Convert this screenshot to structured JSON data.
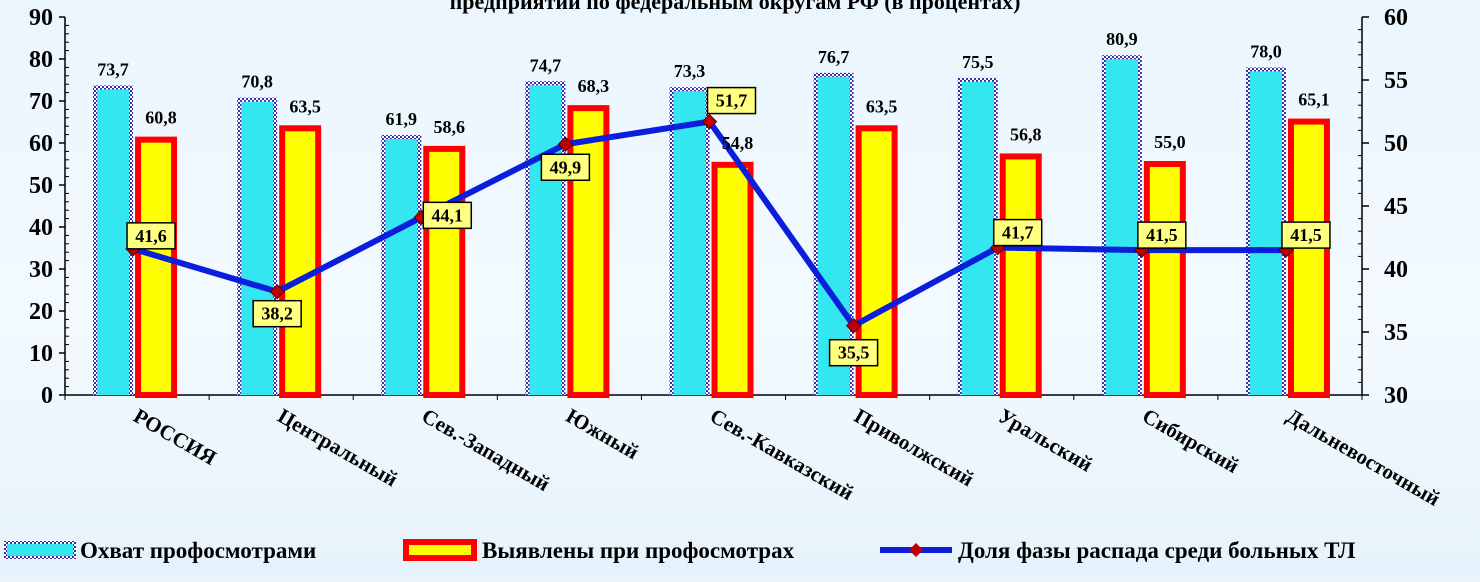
{
  "chart_data": {
    "type": "bar",
    "title": "предприятий по федеральным округам РФ (в процентах)",
    "categories": [
      "РОССИЯ",
      "Центральный",
      "Сев.-Западный",
      "Южный",
      "Сев.-Кавказский",
      "Приволжский",
      "Уральский",
      "Сибирский",
      "Дальневосточный"
    ],
    "series": [
      {
        "name": "Охват профосмотрами",
        "kind": "bar",
        "axis": "left",
        "color": "#33e6f0",
        "values": [
          73.7,
          70.8,
          61.9,
          74.7,
          73.3,
          76.7,
          75.5,
          80.9,
          78.0
        ],
        "labels": [
          "73,7",
          "70,8",
          "61,9",
          "74,7",
          "73,3",
          "76,7",
          "75,5",
          "80,9",
          "78,0"
        ]
      },
      {
        "name": "Выявлены при профосмотрах",
        "kind": "bar",
        "axis": "left",
        "color": "#ffff00",
        "border": "#ff0000",
        "values": [
          60.8,
          63.5,
          58.6,
          68.3,
          54.8,
          63.5,
          56.8,
          55.0,
          65.1
        ],
        "labels": [
          "60,8",
          "63,5",
          "58,6",
          "68,3",
          "54,8",
          "63,5",
          "56,8",
          "55,0",
          "65,1"
        ]
      },
      {
        "name": "Доля фазы распада среди больных ТЛ",
        "kind": "line",
        "axis": "right",
        "color": "#0a1edc",
        "marker_color": "#c00000",
        "values": [
          41.6,
          38.2,
          44.1,
          49.9,
          51.7,
          35.5,
          41.7,
          41.5,
          41.5
        ],
        "labels": [
          "41,6",
          "38,2",
          "44,1",
          "49,9",
          "51,7",
          "35,5",
          "41,7",
          "41,5",
          "41,5"
        ]
      }
    ],
    "y_left": {
      "min": 0,
      "max": 90,
      "ticks": [
        "0",
        "10",
        "20",
        "30",
        "40",
        "50",
        "60",
        "70",
        "80",
        "90"
      ]
    },
    "y_right": {
      "min": 30,
      "max": 60,
      "ticks": [
        "30",
        "35",
        "40",
        "45",
        "50",
        "55",
        "60"
      ]
    },
    "grid": false,
    "legend_position": "bottom"
  }
}
